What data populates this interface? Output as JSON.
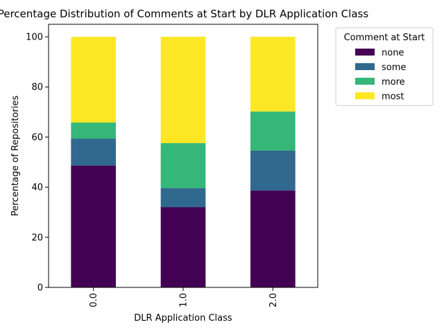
{
  "chart_data": {
    "type": "bar",
    "stacked": true,
    "title": "Percentage Distribution of Comments at Start by DLR Application Class",
    "xlabel": "DLR Application Class",
    "ylabel": "Percentage of Repositories",
    "categories": [
      "0.0",
      "1.0",
      "2.0"
    ],
    "ylim": [
      0,
      105
    ],
    "yticks": [
      "0",
      "20",
      "40",
      "60",
      "80",
      "100"
    ],
    "series": [
      {
        "name": "none",
        "color": "#440154",
        "values": [
          48.6,
          32.0,
          38.7
        ]
      },
      {
        "name": "some",
        "color": "#31688e",
        "values": [
          10.8,
          7.6,
          15.9
        ]
      },
      {
        "name": "more",
        "color": "#35b779",
        "values": [
          6.4,
          18.0,
          15.6
        ]
      },
      {
        "name": "most",
        "color": "#fde725",
        "values": [
          34.2,
          42.4,
          29.8
        ]
      }
    ],
    "legend": {
      "title": "Comment at Start",
      "placement": "outside-top-right"
    },
    "grid": false
  }
}
